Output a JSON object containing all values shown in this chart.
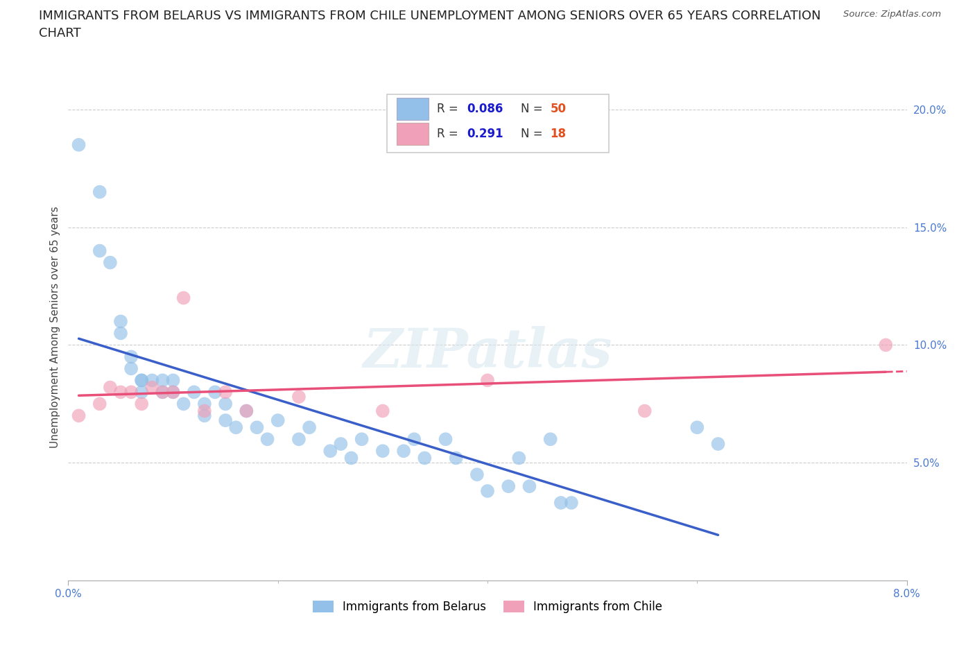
{
  "title_line1": "IMMIGRANTS FROM BELARUS VS IMMIGRANTS FROM CHILE UNEMPLOYMENT AMONG SENIORS OVER 65 YEARS CORRELATION",
  "title_line2": "CHART",
  "source": "Source: ZipAtlas.com",
  "ylabel": "Unemployment Among Seniors over 65 years",
  "yticks": [
    0.05,
    0.1,
    0.15,
    0.2
  ],
  "ytick_labels": [
    "5.0%",
    "10.0%",
    "15.0%",
    "20.0%"
  ],
  "xticks": [
    0.0,
    0.08
  ],
  "xtick_labels": [
    "0.0%",
    "8.0%"
  ],
  "xlim": [
    0.0,
    0.08
  ],
  "ylim": [
    0.0,
    0.215
  ],
  "legend_bottom": [
    "Immigrants from Belarus",
    "Immigrants from Chile"
  ],
  "belarus_color": "#92c0e8",
  "chile_color": "#f0a0b8",
  "belarus_line_color": "#3a5fc8",
  "chile_line_color": "#e8507a",
  "watermark": "ZIPatlas",
  "background_color": "#ffffff",
  "grid_color": "#cccccc",
  "title_fontsize": 13,
  "axis_label_fontsize": 11,
  "tick_fontsize": 11,
  "legend_R_color": "#1a1acd",
  "legend_N_color": "#e05020",
  "belarus_x": [
    0.001,
    0.003,
    0.003,
    0.004,
    0.005,
    0.005,
    0.006,
    0.006,
    0.007,
    0.007,
    0.007,
    0.008,
    0.009,
    0.009,
    0.01,
    0.01,
    0.011,
    0.012,
    0.013,
    0.013,
    0.014,
    0.015,
    0.015,
    0.016,
    0.017,
    0.018,
    0.019,
    0.02,
    0.022,
    0.023,
    0.025,
    0.026,
    0.027,
    0.028,
    0.03,
    0.032,
    0.033,
    0.034,
    0.036,
    0.037,
    0.039,
    0.04,
    0.042,
    0.043,
    0.044,
    0.046,
    0.047,
    0.048,
    0.06,
    0.062
  ],
  "belarus_y": [
    0.185,
    0.165,
    0.14,
    0.135,
    0.11,
    0.105,
    0.095,
    0.09,
    0.085,
    0.085,
    0.08,
    0.085,
    0.085,
    0.08,
    0.085,
    0.08,
    0.075,
    0.08,
    0.075,
    0.07,
    0.08,
    0.075,
    0.068,
    0.065,
    0.072,
    0.065,
    0.06,
    0.068,
    0.06,
    0.065,
    0.055,
    0.058,
    0.052,
    0.06,
    0.055,
    0.055,
    0.06,
    0.052,
    0.06,
    0.052,
    0.045,
    0.038,
    0.04,
    0.052,
    0.04,
    0.06,
    0.033,
    0.033,
    0.065,
    0.058
  ],
  "chile_x": [
    0.001,
    0.003,
    0.004,
    0.005,
    0.006,
    0.007,
    0.008,
    0.009,
    0.01,
    0.011,
    0.013,
    0.015,
    0.017,
    0.022,
    0.03,
    0.04,
    0.055,
    0.078
  ],
  "chile_y": [
    0.07,
    0.075,
    0.082,
    0.08,
    0.08,
    0.075,
    0.082,
    0.08,
    0.08,
    0.12,
    0.072,
    0.08,
    0.072,
    0.078,
    0.072,
    0.085,
    0.072,
    0.1
  ]
}
